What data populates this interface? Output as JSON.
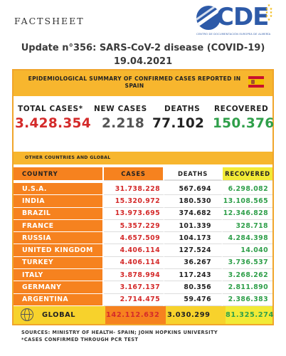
{
  "header": {
    "factsheet": "FACTSHEET",
    "logo_text": "CDE",
    "logo_sub": "CENTRO DE DOCUMENTACIÓN EUROPEA DE ALMERÍA",
    "update_title": "Update n°356: SARS-CoV-2 disease (COVID-19) 19.04.2021"
  },
  "spain": {
    "banner_title": "EPIDEMIOLOGICAL SUMMARY OF CONFIRMED CASES REPORTED IN SPAIN",
    "flag_icon": "spain-flag-icon",
    "total_cases_label": "TOTAL CASES*",
    "total_cases": "3.428.354",
    "new_cases_label": "NEW CASES",
    "new_cases": "2.218",
    "deaths_label": "DEATHS",
    "deaths": "77.102",
    "recovered_label": "RECOVERED",
    "recovered": "150.376"
  },
  "global_section": {
    "label": "OTHER COUNTRIES AND GLOBAL",
    "columns": [
      "COUNTRY",
      "CASES",
      "DEATHS",
      "RECOVERED"
    ],
    "rows": [
      {
        "country": "U.S.A.",
        "cases": "31.738.228",
        "deaths": "567.694",
        "recovered": "6.298.082"
      },
      {
        "country": "INDIA",
        "cases": "15.320.972",
        "deaths": "180.530",
        "recovered": "13.108.565"
      },
      {
        "country": "BRAZIL",
        "cases": "13.973.695",
        "deaths": "374.682",
        "recovered": "12.346.828"
      },
      {
        "country": "FRANCE",
        "cases": "5.357.229",
        "deaths": "101.339",
        "recovered": "328.718"
      },
      {
        "country": "RUSSIA",
        "cases": "4.657.509",
        "deaths": "104.173",
        "recovered": "4.284.398"
      },
      {
        "country": "UNITED KINGDOM",
        "cases": "4.406.114",
        "deaths": "127.524",
        "recovered": "14.040"
      },
      {
        "country": "TURKEY",
        "cases": "4.406.114",
        "deaths": "36.267",
        "recovered": "3.736.537"
      },
      {
        "country": "ITALY",
        "cases": "3.878.994",
        "deaths": "117.243",
        "recovered": "3.268.262"
      },
      {
        "country": "GERMANY",
        "cases": "3.167.137",
        "deaths": "80.356",
        "recovered": "2.811.890"
      },
      {
        "country": "ARGENTINA",
        "cases": "2.714.475",
        "deaths": "59.476",
        "recovered": "2.386.383"
      }
    ],
    "global": {
      "label": "GLOBAL",
      "icon": "globe-icon",
      "cases": "142.112.632",
      "deaths": "3.030.299",
      "recovered": "81.325.274"
    }
  },
  "footer": {
    "sources": "SOURCES: MINISTRY OF HEALTH- SPAIN; JOHN HOPKINS UNIVERSITY",
    "note": "*CASES CONFIRMED THROUGH PCR TEST"
  },
  "colors": {
    "banner": "#f7b62e",
    "country_col": "#f6821f",
    "recovered_col": "#f2ea36",
    "cases_text": "#d42a2a",
    "recovered_text": "#2f9f4a"
  }
}
